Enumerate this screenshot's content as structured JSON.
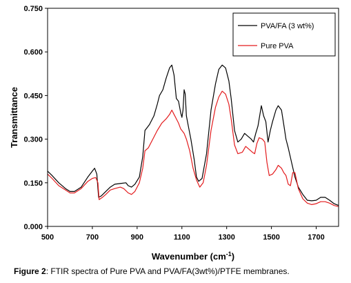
{
  "caption": {
    "label": "Figure 2",
    "text": ": FTIR spectra of Pure PVA and PVA/FA(3wt%)/PTFE membranes."
  },
  "chart_data": {
    "type": "line",
    "xlabel": "Wavenumber (cm",
    "xlabel_sup": "-1",
    "xlabel_end": ")",
    "ylabel": "Transmittance",
    "xlim": [
      500,
      1800
    ],
    "ylim": [
      0,
      0.75
    ],
    "x_ticks": [
      500,
      700,
      900,
      1100,
      1300,
      1500,
      1700
    ],
    "x_tick_labels": [
      "500",
      "700",
      "900",
      "1100",
      "1300",
      "1500",
      "1700"
    ],
    "y_ticks": [
      0,
      0.15,
      0.3,
      0.45,
      0.6,
      0.75
    ],
    "y_tick_labels": [
      "0.000",
      "0.150",
      "0.300",
      "0.450",
      "0.600",
      "0.750"
    ],
    "grid": false,
    "legend_position": "top-right",
    "series": [
      {
        "name": "PVA/FA (3 wt%)",
        "color": "#000000",
        "points": [
          [
            500,
            0.19
          ],
          [
            520,
            0.175
          ],
          [
            550,
            0.15
          ],
          [
            580,
            0.13
          ],
          [
            600,
            0.12
          ],
          [
            620,
            0.12
          ],
          [
            650,
            0.135
          ],
          [
            680,
            0.17
          ],
          [
            700,
            0.19
          ],
          [
            710,
            0.2
          ],
          [
            720,
            0.18
          ],
          [
            728,
            0.1
          ],
          [
            740,
            0.105
          ],
          [
            760,
            0.12
          ],
          [
            780,
            0.135
          ],
          [
            800,
            0.145
          ],
          [
            830,
            0.148
          ],
          [
            850,
            0.15
          ],
          [
            860,
            0.14
          ],
          [
            875,
            0.135
          ],
          [
            890,
            0.145
          ],
          [
            910,
            0.17
          ],
          [
            925,
            0.24
          ],
          [
            935,
            0.33
          ],
          [
            955,
            0.35
          ],
          [
            975,
            0.38
          ],
          [
            990,
            0.42
          ],
          [
            1000,
            0.45
          ],
          [
            1015,
            0.47
          ],
          [
            1030,
            0.51
          ],
          [
            1045,
            0.545
          ],
          [
            1055,
            0.555
          ],
          [
            1065,
            0.52
          ],
          [
            1075,
            0.44
          ],
          [
            1085,
            0.43
          ],
          [
            1095,
            0.39
          ],
          [
            1100,
            0.375
          ],
          [
            1105,
            0.4
          ],
          [
            1110,
            0.47
          ],
          [
            1115,
            0.455
          ],
          [
            1120,
            0.38
          ],
          [
            1130,
            0.34
          ],
          [
            1140,
            0.3
          ],
          [
            1155,
            0.23
          ],
          [
            1165,
            0.17
          ],
          [
            1175,
            0.155
          ],
          [
            1190,
            0.165
          ],
          [
            1210,
            0.25
          ],
          [
            1230,
            0.4
          ],
          [
            1250,
            0.49
          ],
          [
            1265,
            0.54
          ],
          [
            1280,
            0.555
          ],
          [
            1295,
            0.545
          ],
          [
            1310,
            0.5
          ],
          [
            1320,
            0.44
          ],
          [
            1335,
            0.33
          ],
          [
            1350,
            0.29
          ],
          [
            1365,
            0.3
          ],
          [
            1380,
            0.32
          ],
          [
            1395,
            0.31
          ],
          [
            1410,
            0.3
          ],
          [
            1420,
            0.29
          ],
          [
            1430,
            0.32
          ],
          [
            1440,
            0.345
          ],
          [
            1455,
            0.415
          ],
          [
            1465,
            0.38
          ],
          [
            1475,
            0.36
          ],
          [
            1485,
            0.29
          ],
          [
            1495,
            0.33
          ],
          [
            1505,
            0.36
          ],
          [
            1520,
            0.4
          ],
          [
            1530,
            0.415
          ],
          [
            1545,
            0.4
          ],
          [
            1555,
            0.35
          ],
          [
            1565,
            0.3
          ],
          [
            1575,
            0.27
          ],
          [
            1590,
            0.22
          ],
          [
            1605,
            0.17
          ],
          [
            1620,
            0.135
          ],
          [
            1640,
            0.11
          ],
          [
            1660,
            0.09
          ],
          [
            1680,
            0.088
          ],
          [
            1700,
            0.09
          ],
          [
            1720,
            0.1
          ],
          [
            1740,
            0.1
          ],
          [
            1760,
            0.09
          ],
          [
            1780,
            0.078
          ],
          [
            1800,
            0.072
          ]
        ]
      },
      {
        "name": "Pure PVA",
        "color": "#e31a1c",
        "points": [
          [
            500,
            0.18
          ],
          [
            520,
            0.165
          ],
          [
            550,
            0.14
          ],
          [
            580,
            0.125
          ],
          [
            600,
            0.115
          ],
          [
            620,
            0.115
          ],
          [
            650,
            0.13
          ],
          [
            680,
            0.155
          ],
          [
            700,
            0.165
          ],
          [
            715,
            0.168
          ],
          [
            725,
            0.15
          ],
          [
            730,
            0.092
          ],
          [
            745,
            0.1
          ],
          [
            760,
            0.11
          ],
          [
            780,
            0.125
          ],
          [
            800,
            0.13
          ],
          [
            825,
            0.135
          ],
          [
            840,
            0.13
          ],
          [
            860,
            0.115
          ],
          [
            875,
            0.11
          ],
          [
            890,
            0.12
          ],
          [
            910,
            0.15
          ],
          [
            925,
            0.2
          ],
          [
            935,
            0.26
          ],
          [
            950,
            0.27
          ],
          [
            970,
            0.3
          ],
          [
            990,
            0.33
          ],
          [
            1010,
            0.355
          ],
          [
            1030,
            0.37
          ],
          [
            1045,
            0.385
          ],
          [
            1055,
            0.4
          ],
          [
            1065,
            0.385
          ],
          [
            1075,
            0.37
          ],
          [
            1085,
            0.355
          ],
          [
            1095,
            0.335
          ],
          [
            1100,
            0.33
          ],
          [
            1110,
            0.32
          ],
          [
            1120,
            0.3
          ],
          [
            1135,
            0.26
          ],
          [
            1150,
            0.2
          ],
          [
            1165,
            0.16
          ],
          [
            1180,
            0.135
          ],
          [
            1195,
            0.15
          ],
          [
            1210,
            0.21
          ],
          [
            1230,
            0.33
          ],
          [
            1250,
            0.41
          ],
          [
            1265,
            0.445
          ],
          [
            1280,
            0.465
          ],
          [
            1295,
            0.455
          ],
          [
            1310,
            0.42
          ],
          [
            1320,
            0.37
          ],
          [
            1335,
            0.28
          ],
          [
            1350,
            0.25
          ],
          [
            1370,
            0.255
          ],
          [
            1385,
            0.275
          ],
          [
            1400,
            0.265
          ],
          [
            1415,
            0.255
          ],
          [
            1425,
            0.25
          ],
          [
            1435,
            0.285
          ],
          [
            1445,
            0.305
          ],
          [
            1460,
            0.3
          ],
          [
            1470,
            0.29
          ],
          [
            1480,
            0.22
          ],
          [
            1490,
            0.175
          ],
          [
            1505,
            0.18
          ],
          [
            1520,
            0.195
          ],
          [
            1530,
            0.21
          ],
          [
            1545,
            0.2
          ],
          [
            1555,
            0.185
          ],
          [
            1565,
            0.175
          ],
          [
            1575,
            0.145
          ],
          [
            1585,
            0.14
          ],
          [
            1595,
            0.185
          ],
          [
            1605,
            0.185
          ],
          [
            1620,
            0.13
          ],
          [
            1640,
            0.095
          ],
          [
            1660,
            0.08
          ],
          [
            1680,
            0.075
          ],
          [
            1700,
            0.078
          ],
          [
            1720,
            0.085
          ],
          [
            1740,
            0.085
          ],
          [
            1760,
            0.08
          ],
          [
            1780,
            0.072
          ],
          [
            1800,
            0.068
          ]
        ]
      }
    ]
  }
}
